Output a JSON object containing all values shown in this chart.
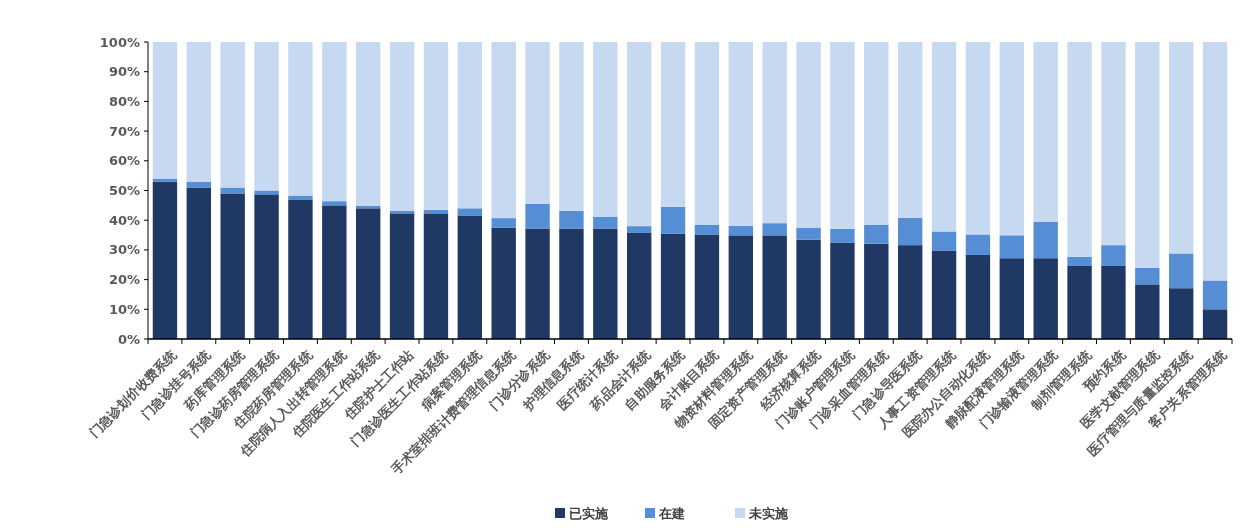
{
  "chart_data": {
    "type": "bar",
    "stacked": true,
    "categories": [
      "门急诊划价收费系统",
      "门急诊挂号系统",
      "药库管理系统",
      "门急诊药房管理系统",
      "住院药房管理系统",
      "住院病人入出转管理系统",
      "住院医生工作站系统",
      "住院护士工作站",
      "门急诊医生工作站系统",
      "病案管理系统",
      "手术室排班计费管理信息系统",
      "门诊分诊系统",
      "护理信息系统",
      "医疗统计系统",
      "药品会计系统",
      "自助服务系统",
      "会计账目系统",
      "物资材料管理系统",
      "固定资产管理系统",
      "经济核算系统",
      "门诊账户管理系统",
      "门诊采血管理系统",
      "门急诊导医系统",
      "人事工资管理系统",
      "医院办公自动化系统",
      "静脉配液管理系统",
      "门诊输液管理系统",
      "制剂管理系统",
      "预约系统",
      "医学文献管理系统",
      "医疗管理与质量监控系统",
      "客户关系管理系统"
    ],
    "series": [
      {
        "name": "已实施",
        "color": "#1f3864",
        "values": [
          53,
          51,
          49,
          48.7,
          46.8,
          45,
          44,
          42.3,
          42.3,
          41.6,
          37.5,
          37.2,
          37.2,
          37.2,
          35.7,
          35.4,
          35.2,
          34.9,
          34.9,
          33.4,
          32.5,
          32.1,
          31.6,
          29.8,
          28.3,
          27.2,
          27.2,
          24.6,
          24.6,
          18.4,
          17.1,
          10
        ]
      },
      {
        "name": "在建",
        "color": "#558ed5",
        "values": [
          1,
          2,
          2,
          1.3,
          1.5,
          1.4,
          0.9,
          0.9,
          1.2,
          2.4,
          3.2,
          8.3,
          6,
          4,
          2.3,
          9.1,
          3.3,
          3.2,
          4.1,
          4.1,
          4.6,
          6.4,
          9.2,
          6.4,
          6.9,
          7.7,
          12.2,
          3.1,
          7,
          5.6,
          11.7,
          9.7
        ]
      },
      {
        "name": "未实施",
        "color": "#c6d9f1",
        "values": [
          46,
          47,
          49,
          50,
          51.7,
          53.6,
          55.1,
          56.8,
          56.5,
          56,
          59.3,
          54.5,
          56.8,
          58.8,
          62,
          55.5,
          61.5,
          61.9,
          61,
          62.5,
          62.9,
          61.5,
          59.2,
          63.8,
          64.8,
          65.1,
          60.6,
          72.3,
          68.4,
          76,
          71.2,
          80.3
        ]
      }
    ],
    "ylim": [
      0,
      100
    ],
    "yticks": [
      {
        "value": 0,
        "label": "0%"
      },
      {
        "value": 10,
        "label": "10%"
      },
      {
        "value": 20,
        "label": "20%"
      },
      {
        "value": 30,
        "label": "30%"
      },
      {
        "value": 40,
        "label": "40%"
      },
      {
        "value": 50,
        "label": "50%"
      },
      {
        "value": 60,
        "label": "60%"
      },
      {
        "value": 70,
        "label": "70%"
      },
      {
        "value": 80,
        "label": "80%"
      },
      {
        "value": 90,
        "label": "90%"
      },
      {
        "value": 100,
        "label": "100%"
      }
    ],
    "grid": false,
    "legend": "bottom"
  }
}
